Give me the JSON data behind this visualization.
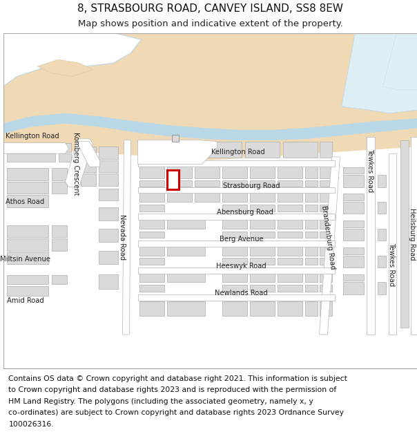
{
  "title_line1": "8, STRASBOURG ROAD, CANVEY ISLAND, SS8 8EW",
  "title_line2": "Map shows position and indicative extent of the property.",
  "footer_lines": [
    "Contains OS data © Crown copyright and database right 2021. This information is subject",
    "to Crown copyright and database rights 2023 and is reproduced with the permission of",
    "HM Land Registry. The polygons (including the associated geometry, namely x, y",
    "co-ordinates) are subject to Crown copyright and database rights 2023 Ordnance Survey",
    "100026316."
  ],
  "bg_map_color": "#f2f2f2",
  "bg_header_color": "#ffffff",
  "bg_footer_color": "#ffffff",
  "water_color": "#b8d8e8",
  "land_color": "#f0d9b5",
  "road_color": "#ffffff",
  "building_color": "#dadada",
  "building_outline": "#aaaaaa",
  "highlight_color": "#cc0000",
  "title_fontsize": 11,
  "subtitle_fontsize": 9.5,
  "footer_fontsize": 7.8,
  "label_fontsize": 7.2
}
